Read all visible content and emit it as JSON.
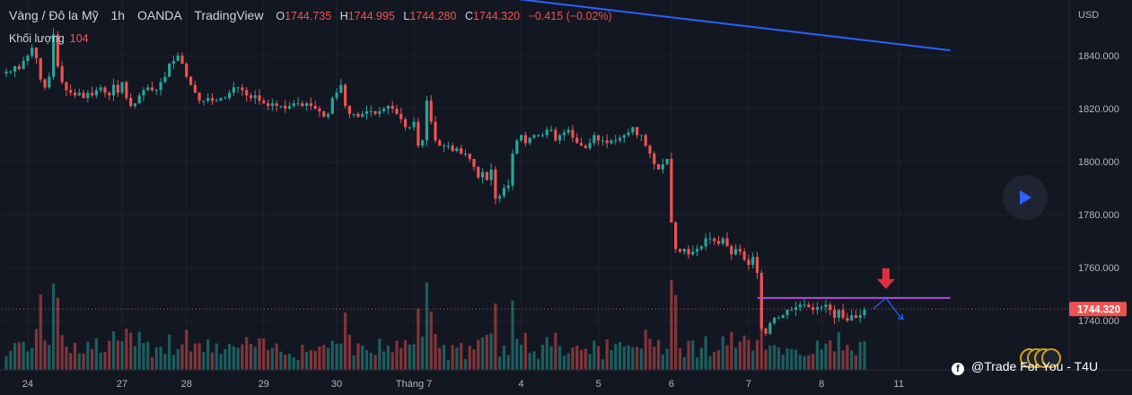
{
  "header": {
    "symbol": "Vàng / Đô la Mỹ",
    "interval": "1h",
    "broker": "OANDA",
    "source": "TradingView",
    "ohlc": {
      "o_label": "O",
      "o": "1744.735",
      "h_label": "H",
      "h": "1744.995",
      "l_label": "L",
      "l": "1744.280",
      "c_label": "C",
      "c": "1744.320",
      "change": "−0.415 (−0.02%)"
    },
    "volume_label": "Khối lượng",
    "volume_value": "104"
  },
  "watermark": "@Trade For You - T4U",
  "colors": {
    "background": "#131722",
    "up": "#26a69a",
    "down": "#ef5350",
    "trendline": "#2962ff",
    "resistance": "#b24bd8",
    "arrow_down": "#e03040",
    "projection": "#2962ff"
  },
  "chart_data": {
    "type": "candlestick",
    "currency_label": "USD",
    "y_ticks": [
      "1840.000",
      "1820.000",
      "1800.000",
      "1780.000",
      "1760.000",
      "1740.000"
    ],
    "y_tick_values": [
      1840,
      1820,
      1800,
      1780,
      1760,
      1740
    ],
    "ylim": [
      1724,
      1866
    ],
    "last_price": 1744.32,
    "last_price_label": "1744.320",
    "x_labels": [
      "24",
      "27",
      "28",
      "29",
      "30",
      "Tháng 7",
      "4",
      "5",
      "6",
      "7",
      "8",
      "11"
    ],
    "x_label_index": [
      5,
      27,
      42,
      60,
      77,
      95,
      120,
      138,
      155,
      173,
      190,
      208
    ],
    "close_path": [
      1834,
      1834,
      1836,
      1835,
      1838,
      1840,
      1843,
      1839,
      1831,
      1828,
      1832,
      1848,
      1836,
      1830,
      1827,
      1826,
      1825,
      1826,
      1824,
      1826,
      1825,
      1827,
      1828,
      1826,
      1825,
      1829,
      1826,
      1830,
      1824,
      1821,
      1822,
      1825,
      1827,
      1828,
      1827,
      1827,
      1830,
      1832,
      1837,
      1838,
      1840,
      1837,
      1832,
      1829,
      1826,
      1823,
      1823,
      1824,
      1823,
      1823,
      1824,
      1824,
      1826,
      1828,
      1828,
      1827,
      1825,
      1824,
      1825,
      1823,
      1822,
      1821,
      1822,
      1821,
      1821,
      1820,
      1821,
      1822,
      1822,
      1821,
      1822,
      1821,
      1820,
      1819,
      1817,
      1818,
      1824,
      1826,
      1829,
      1821,
      1818,
      1818,
      1817,
      1818,
      1819,
      1819,
      1818,
      1819,
      1820,
      1821,
      1820,
      1818,
      1816,
      1813,
      1813,
      1815,
      1806,
      1808,
      1823,
      1815,
      1808,
      1806,
      1806,
      1806,
      1804,
      1805,
      1803,
      1803,
      1801,
      1798,
      1794,
      1796,
      1793,
      1797,
      1786,
      1787,
      1790,
      1791,
      1803,
      1808,
      1810,
      1807,
      1809,
      1810,
      1810,
      1810,
      1812,
      1812,
      1808,
      1810,
      1811,
      1812,
      1809,
      1807,
      1806,
      1805,
      1807,
      1810,
      1808,
      1808,
      1807,
      1808,
      1808,
      1809,
      1810,
      1811,
      1813,
      1810,
      1810,
      1806,
      1803,
      1799,
      1797,
      1799,
      1801,
      1777,
      1767,
      1766,
      1767,
      1765,
      1766,
      1767,
      1768,
      1771,
      1771,
      1770,
      1769,
      1771,
      1768,
      1765,
      1767,
      1766,
      1763,
      1761,
      1764,
      1758,
      1737,
      1735,
      1739,
      1741,
      1741,
      1742,
      1744,
      1744,
      1745,
      1746,
      1746,
      1745,
      1744,
      1745,
      1745,
      1746,
      1744,
      1741,
      1744,
      1741,
      1740,
      1742,
      1741,
      1742,
      1744
    ],
    "trendline": {
      "start_price": 1866,
      "end_price": 1842,
      "start_index": 95,
      "end_index": 220
    },
    "resistance_level": 1748.5,
    "projection": [
      [
        202,
        1744.3
      ],
      [
        205,
        1748.5
      ],
      [
        208,
        1742
      ],
      [
        209,
        1740.5
      ]
    ]
  }
}
